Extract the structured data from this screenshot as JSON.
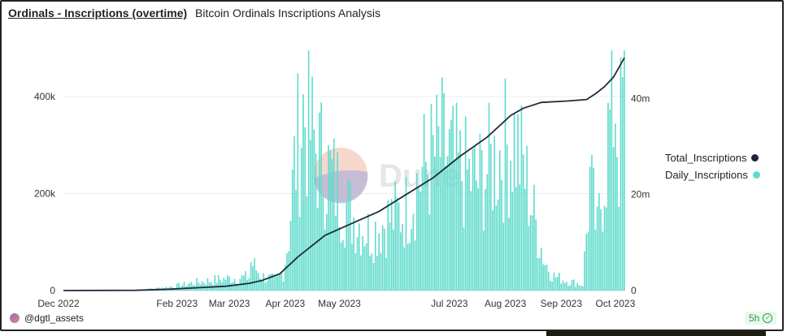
{
  "header": {
    "title": "Ordinals - Inscriptions (overtime)",
    "subtitle": "Bitcoin Ordinals Inscriptions Analysis"
  },
  "footer": {
    "user": "@dgtl_assets",
    "age_badge": "5h"
  },
  "watermark": {
    "text": "Dune"
  },
  "colors": {
    "bars": "#5fdbcc",
    "line": "#222c3a",
    "legend_total": "#1b2536",
    "legend_daily": "#5fdbcc"
  },
  "chart_data": {
    "type": "bar",
    "title": "",
    "xlabel": "",
    "ylabel": "",
    "ylim": [
      0,
      500000
    ],
    "y2lim": [
      0,
      50000000
    ],
    "grid": true,
    "legend_placement": "right",
    "yticks": [
      "0",
      "200k",
      "400k"
    ],
    "y2ticks": [
      "0",
      "20m",
      "40m"
    ],
    "xticks": [
      "Dec 2022",
      "Feb 2023",
      "Mar 2023",
      "Apr 2023",
      "May 2023",
      "Jul 2023",
      "Aug 2023",
      "Sep 2023",
      "Oct 2023"
    ],
    "series": [
      {
        "name": "Daily_Inscriptions",
        "kind": "bar",
        "axis": "left",
        "daily_profile": [
          [
            0,
            0
          ],
          [
            40,
            0
          ],
          [
            45,
            2000
          ],
          [
            60,
            8000
          ],
          [
            75,
            18000
          ],
          [
            90,
            25000
          ],
          [
            103,
            28000
          ],
          [
            104,
            60000
          ],
          [
            110,
            30000
          ],
          [
            118,
            22000
          ],
          [
            122,
            40000
          ],
          [
            125,
            120000
          ],
          [
            128,
            260000
          ],
          [
            133,
            380000
          ],
          [
            140,
            300000
          ],
          [
            150,
            230000
          ],
          [
            160,
            160000
          ],
          [
            170,
            120000
          ],
          [
            180,
            150000
          ],
          [
            190,
            170000
          ],
          [
            200,
            260000
          ],
          [
            210,
            300000
          ],
          [
            220,
            250000
          ],
          [
            230,
            230000
          ],
          [
            240,
            280000
          ],
          [
            250,
            320000
          ],
          [
            255,
            260000
          ],
          [
            262,
            140000
          ],
          [
            267,
            60000
          ],
          [
            272,
            30000
          ],
          [
            280,
            20000
          ],
          [
            288,
            12000
          ],
          [
            292,
            230000
          ],
          [
            296,
            120000
          ],
          [
            300,
            260000
          ],
          [
            304,
            380000
          ],
          [
            306,
            420000
          ],
          [
            308,
            280000
          ],
          [
            311,
            460000
          ]
        ]
      },
      {
        "name": "Total_Inscriptions",
        "kind": "line",
        "axis": "right",
        "points": [
          [
            0,
            0
          ],
          [
            40,
            50000
          ],
          [
            60,
            300000
          ],
          [
            90,
            900000
          ],
          [
            103,
            1500000
          ],
          [
            110,
            2100000
          ],
          [
            120,
            3500000
          ],
          [
            130,
            7000000
          ],
          [
            145,
            11500000
          ],
          [
            160,
            14000000
          ],
          [
            175,
            16500000
          ],
          [
            190,
            20000000
          ],
          [
            205,
            23500000
          ],
          [
            220,
            28000000
          ],
          [
            235,
            32000000
          ],
          [
            248,
            36500000
          ],
          [
            255,
            38000000
          ],
          [
            265,
            39200000
          ],
          [
            280,
            39500000
          ],
          [
            290,
            39800000
          ],
          [
            295,
            41000000
          ],
          [
            300,
            42500000
          ],
          [
            305,
            44500000
          ],
          [
            311,
            48500000
          ]
        ]
      }
    ],
    "x_range": [
      0,
      311
    ]
  }
}
